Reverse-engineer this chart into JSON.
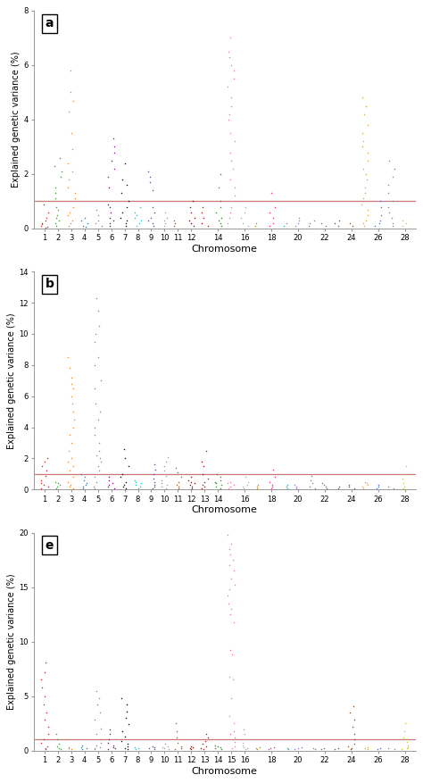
{
  "panels": [
    "a",
    "b",
    "e"
  ],
  "ylabel": "Explained genetic variance (%)",
  "xlabel": "Chromosome",
  "threshold": 1.0,
  "threshold_color": "#cc7777",
  "background_color": "#ffffff",
  "chrom_colors": {
    "1": "#e31a1c",
    "2": "#33a02c",
    "3": "#ff7f00",
    "4": "#1f78b4",
    "5": "#888888",
    "6": "#8b008b",
    "7": "#000000",
    "8": "#00ced1",
    "9": "#6a3d9a",
    "10": "#999999",
    "11": "#a0522d",
    "12": "#8b0000",
    "13": "#cc0000",
    "14": "#228b22",
    "15": "#ff69b4",
    "16": "#aaaaaa",
    "17": "#b8860b",
    "18": "#ff1493",
    "19": "#20b2aa",
    "20": "#9370db",
    "21": "#708090",
    "22": "#696969",
    "23": "#556b2f",
    "24": "#8b4513",
    "25": "#daa520",
    "26": "#4169e1",
    "27": "#778899",
    "28": "#cccc00"
  },
  "panel_a": {
    "ylim": [
      0,
      8
    ],
    "yticks": [
      0,
      2,
      4,
      6,
      8
    ],
    "xtick_labels": [
      1,
      2,
      3,
      4,
      5,
      6,
      7,
      8,
      9,
      10,
      11,
      12,
      14,
      16,
      18,
      20,
      22,
      24,
      26,
      28
    ],
    "peaks": {
      "1": [
        0.9,
        0.6,
        0.4,
        0.3,
        0.2,
        0.15,
        0.1,
        0.05,
        0.03
      ],
      "2": [
        2.6,
        2.3,
        2.1,
        1.9,
        1.5,
        1.3,
        1.1,
        0.8,
        0.7,
        0.5,
        0.4,
        0.3,
        0.2,
        0.1
      ],
      "3": [
        5.8,
        5.0,
        4.7,
        4.3,
        3.5,
        2.9,
        2.4,
        2.1,
        1.8,
        1.5,
        1.3,
        1.1,
        0.8,
        0.6,
        0.5,
        0.3,
        0.2,
        0.1
      ],
      "4": [
        0.4,
        0.3,
        0.2,
        0.1,
        0.05
      ],
      "5": [
        0.7,
        0.5,
        0.3,
        0.2,
        0.1
      ],
      "6": [
        3.3,
        3.0,
        2.8,
        2.5,
        2.2,
        1.9,
        1.5,
        0.9,
        0.8,
        0.6,
        0.4,
        0.3,
        0.2,
        0.1
      ],
      "7": [
        2.4,
        1.8,
        1.6,
        1.3,
        1.0,
        0.8,
        0.6,
        0.4,
        0.3,
        0.2,
        0.1
      ],
      "8": [
        0.8,
        0.6,
        0.5,
        0.4,
        0.3,
        0.2,
        0.1
      ],
      "9": [
        2.1,
        1.9,
        1.7,
        1.4,
        0.8,
        0.6,
        0.4,
        0.3,
        0.2,
        0.1
      ],
      "10": [
        0.6,
        0.4,
        0.3,
        0.2,
        0.1
      ],
      "11": [
        0.3,
        0.2,
        0.1
      ],
      "12": [
        1.0,
        0.8,
        0.6,
        0.4,
        0.3,
        0.2,
        0.1
      ],
      "13": [
        0.8,
        0.6,
        0.4,
        0.2,
        0.1
      ],
      "14": [
        2.0,
        1.5,
        1.0,
        0.8,
        0.6,
        0.4,
        0.3,
        0.2,
        0.1
      ],
      "15": [
        7.0,
        6.5,
        6.3,
        6.0,
        5.8,
        5.5,
        5.2,
        4.8,
        4.5,
        4.2,
        4.0,
        3.5,
        3.2,
        2.8,
        2.5,
        2.2,
        1.8,
        1.5,
        1.2,
        1.0,
        0.8,
        0.6,
        0.4,
        0.2
      ],
      "16": [
        0.8,
        0.6,
        0.4,
        0.2,
        0.1
      ],
      "17": [
        0.2,
        0.1
      ],
      "18": [
        1.3,
        0.8,
        0.6,
        0.4,
        0.2,
        0.1
      ],
      "19": [
        0.2,
        0.1
      ],
      "20": [
        0.4,
        0.3,
        0.2,
        0.1
      ],
      "21": [
        0.3,
        0.2,
        0.1
      ],
      "22": [
        0.2,
        0.1
      ],
      "23": [
        0.3,
        0.2,
        0.1
      ],
      "24": [
        0.2,
        0.1
      ],
      "25": [
        4.8,
        4.5,
        4.2,
        3.8,
        3.5,
        3.2,
        3.0,
        2.8,
        2.5,
        2.2,
        2.0,
        1.8,
        1.5,
        1.3,
        1.1,
        0.9,
        0.7,
        0.5,
        0.3,
        0.2,
        0.1
      ],
      "26": [
        1.0,
        0.8,
        0.5,
        0.3,
        0.2,
        0.1
      ],
      "27": [
        2.5,
        2.2,
        1.9,
        1.6,
        1.3,
        1.0,
        0.8,
        0.6,
        0.4,
        0.2,
        0.1
      ],
      "28": [
        0.3,
        0.2,
        0.1
      ]
    }
  },
  "panel_b": {
    "ylim": [
      0,
      14
    ],
    "yticks": [
      0,
      2,
      4,
      6,
      8,
      10,
      12,
      14
    ],
    "xtick_labels": [
      1,
      2,
      3,
      4,
      5,
      6,
      7,
      8,
      9,
      10,
      11,
      12,
      13,
      14,
      16,
      18,
      20,
      22,
      24,
      26,
      28
    ],
    "peaks": {
      "1": [
        2.0,
        1.8,
        1.5,
        1.2,
        0.9,
        0.6,
        0.4,
        0.3,
        0.2,
        0.1
      ],
      "2": [
        0.5,
        0.4,
        0.3,
        0.2,
        0.1
      ],
      "3": [
        8.5,
        7.8,
        7.2,
        6.8,
        6.5,
        6.0,
        5.5,
        5.0,
        4.5,
        4.0,
        3.5,
        3.0,
        2.5,
        2.0,
        1.8,
        1.5,
        1.2,
        1.0,
        0.8,
        0.5,
        0.3,
        0.2,
        0.1
      ],
      "4": [
        1.0,
        0.8,
        0.6,
        0.4,
        0.3,
        0.2,
        0.1
      ],
      "5": [
        12.3,
        11.5,
        10.5,
        10.0,
        9.5,
        8.5,
        8.0,
        7.0,
        6.5,
        5.5,
        5.0,
        4.5,
        4.0,
        3.5,
        3.0,
        2.5,
        2.2,
        2.0,
        1.8,
        1.5,
        1.2,
        0.8,
        0.5,
        0.2,
        0.1
      ],
      "6": [
        0.8,
        0.6,
        0.4,
        0.3,
        0.2,
        0.1
      ],
      "7": [
        2.6,
        2.0,
        1.5,
        1.0,
        0.8,
        0.5,
        0.3,
        0.2,
        0.1
      ],
      "8": [
        0.6,
        0.5,
        0.4,
        0.3,
        0.2,
        0.1
      ],
      "9": [
        1.6,
        1.3,
        1.0,
        0.7,
        0.5,
        0.3,
        0.2,
        0.1
      ],
      "10": [
        2.1,
        1.8,
        1.5,
        1.2,
        0.9,
        0.6,
        0.4,
        0.3,
        0.2,
        0.1
      ],
      "11": [
        1.4,
        1.1,
        0.8,
        0.5,
        0.3,
        0.2,
        0.1
      ],
      "12": [
        0.8,
        0.6,
        0.5,
        0.4,
        0.3,
        0.2,
        0.1
      ],
      "13": [
        2.5,
        1.8,
        1.5,
        1.0,
        0.7,
        0.5,
        0.3,
        0.2,
        0.1
      ],
      "14": [
        1.0,
        0.8,
        0.6,
        0.5,
        0.4,
        0.3,
        0.2,
        0.1
      ],
      "15": [
        0.5,
        0.4,
        0.3,
        0.2,
        0.1
      ],
      "16": [
        0.8,
        0.5,
        0.3,
        0.2,
        0.1
      ],
      "17": [
        0.3,
        0.2,
        0.1
      ],
      "18": [
        1.3,
        0.8,
        0.5,
        0.3,
        0.2,
        0.1
      ],
      "19": [
        0.3,
        0.2,
        0.1
      ],
      "20": [
        0.3,
        0.2,
        0.1
      ],
      "21": [
        0.9,
        0.6,
        0.4,
        0.2,
        0.1
      ],
      "22": [
        0.4,
        0.3,
        0.2,
        0.1
      ],
      "23": [
        0.2,
        0.1
      ],
      "24": [
        0.3,
        0.2,
        0.1
      ],
      "25": [
        0.5,
        0.4,
        0.3,
        0.2,
        0.1
      ],
      "26": [
        0.3,
        0.2,
        0.1
      ],
      "27": [
        0.2,
        0.1
      ],
      "28": [
        1.5,
        1.0,
        0.7,
        0.4,
        0.2,
        0.1
      ]
    }
  },
  "panel_e": {
    "ylim": [
      0,
      20
    ],
    "yticks": [
      0,
      5,
      10,
      15,
      20
    ],
    "xtick_labels": [
      1,
      2,
      3,
      4,
      5,
      6,
      7,
      8,
      9,
      10,
      11,
      12,
      13,
      14,
      15,
      16,
      18,
      20,
      22,
      24,
      26,
      28
    ],
    "peaks": {
      "1": [
        8.1,
        7.2,
        6.5,
        5.8,
        5.0,
        4.2,
        3.5,
        2.8,
        2.2,
        1.5,
        1.0,
        0.7,
        0.4,
        0.2,
        0.1
      ],
      "2": [
        1.5,
        1.0,
        0.6,
        0.4,
        0.2,
        0.1
      ],
      "3": [
        0.3,
        0.2,
        0.1
      ],
      "4": [
        0.5,
        0.3,
        0.2,
        0.1
      ],
      "5": [
        5.5,
        4.8,
        4.2,
        3.5,
        2.8,
        2.0,
        1.5,
        1.0,
        0.7,
        0.5,
        0.3,
        0.2,
        0.1
      ],
      "6": [
        1.9,
        1.5,
        1.0,
        0.7,
        0.5,
        0.3,
        0.2,
        0.1
      ],
      "7": [
        4.8,
        4.2,
        3.6,
        3.0,
        2.4,
        1.8,
        1.3,
        0.9,
        0.6,
        0.4,
        0.2,
        0.1
      ],
      "8": [
        0.3,
        0.2,
        0.1
      ],
      "9": [
        0.4,
        0.3,
        0.2,
        0.1
      ],
      "10": [
        0.6,
        0.4,
        0.3,
        0.2,
        0.1
      ],
      "11": [
        2.5,
        1.8,
        1.2,
        0.7,
        0.4,
        0.2,
        0.1
      ],
      "12": [
        0.4,
        0.3,
        0.2,
        0.1
      ],
      "13": [
        1.5,
        1.2,
        0.9,
        0.6,
        0.4,
        0.2,
        0.1
      ],
      "14": [
        0.5,
        0.4,
        0.3,
        0.2,
        0.1
      ],
      "15": [
        19.8,
        19.0,
        18.5,
        18.0,
        17.5,
        17.0,
        16.5,
        15.8,
        15.2,
        14.8,
        14.2,
        13.5,
        13.0,
        12.5,
        11.8,
        9.2,
        8.8,
        6.8,
        6.5,
        4.8,
        3.2,
        2.5,
        1.8,
        1.5,
        1.2,
        0.8,
        0.4,
        0.2
      ],
      "16": [
        1.9,
        1.5,
        1.0,
        0.7,
        0.5,
        0.3,
        0.2,
        0.1
      ],
      "17": [
        0.3,
        0.2,
        0.1
      ],
      "18": [
        0.3,
        0.2,
        0.1
      ],
      "19": [
        0.2,
        0.1
      ],
      "20": [
        0.3,
        0.2,
        0.1
      ],
      "21": [
        0.2,
        0.1
      ],
      "22": [
        0.2,
        0.1
      ],
      "23": [
        0.2,
        0.1
      ],
      "24": [
        4.1,
        3.5,
        2.8,
        2.2,
        1.5,
        1.0,
        0.6,
        0.4,
        0.2,
        0.1
      ],
      "25": [
        0.3,
        0.2,
        0.1
      ],
      "26": [
        0.2,
        0.1
      ],
      "27": [
        0.2,
        0.1
      ],
      "28": [
        2.5,
        1.8,
        1.2,
        0.8,
        0.5,
        0.3,
        0.2,
        0.1
      ]
    }
  }
}
